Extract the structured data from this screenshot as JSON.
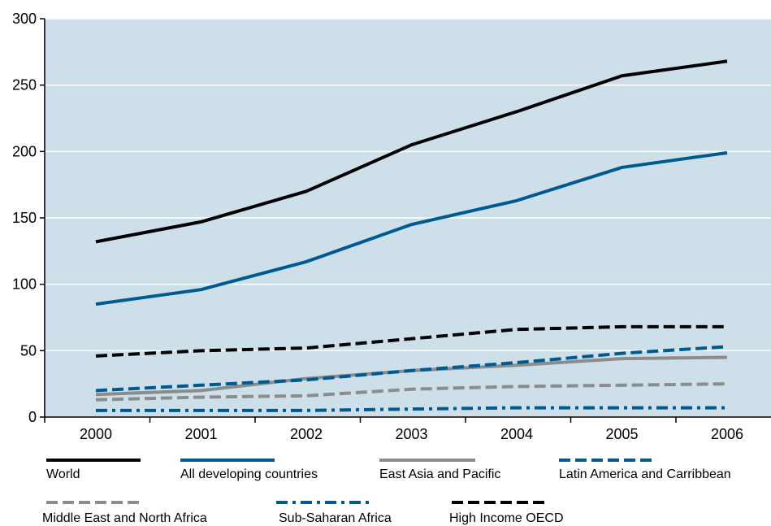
{
  "chart_data": {
    "type": "line",
    "title": "",
    "xlabel": "",
    "ylabel": "",
    "x": [
      "2000",
      "2001",
      "2002",
      "2003",
      "2004",
      "2005",
      "2006"
    ],
    "ylim": [
      0,
      300
    ],
    "yticks": [
      0,
      50,
      100,
      150,
      200,
      250,
      300
    ],
    "grid": "horizontal",
    "background": "#cddfe9",
    "legend_placement": "bottom",
    "series": [
      {
        "name": "World",
        "values": [
          132,
          147,
          170,
          205,
          230,
          257,
          268
        ],
        "color": "#000000",
        "dash": "solid"
      },
      {
        "name": "All developing countries",
        "values": [
          85,
          96,
          117,
          145,
          163,
          188,
          199
        ],
        "color": "#005a92",
        "dash": "solid"
      },
      {
        "name": "East Asia and Pacific",
        "values": [
          17,
          20,
          29,
          35,
          39,
          44,
          45
        ],
        "color": "#8c8c8c",
        "dash": "solid"
      },
      {
        "name": "Latin America and Carribbean",
        "values": [
          20,
          24,
          28,
          35,
          41,
          48,
          53
        ],
        "color": "#005a92",
        "dash": "dashed"
      },
      {
        "name": "Middle East and North Africa",
        "values": [
          13,
          15,
          16,
          21,
          23,
          24,
          25
        ],
        "color": "#8c8c8c",
        "dash": "dashed"
      },
      {
        "name": "Sub-Saharan Africa",
        "values": [
          5,
          5,
          5,
          6,
          7,
          7,
          7
        ],
        "color": "#005a92",
        "dash": "dashdot"
      },
      {
        "name": "High Income OECD",
        "values": [
          46,
          50,
          52,
          59,
          66,
          68,
          68
        ],
        "color": "#000000",
        "dash": "dashed"
      }
    ]
  }
}
